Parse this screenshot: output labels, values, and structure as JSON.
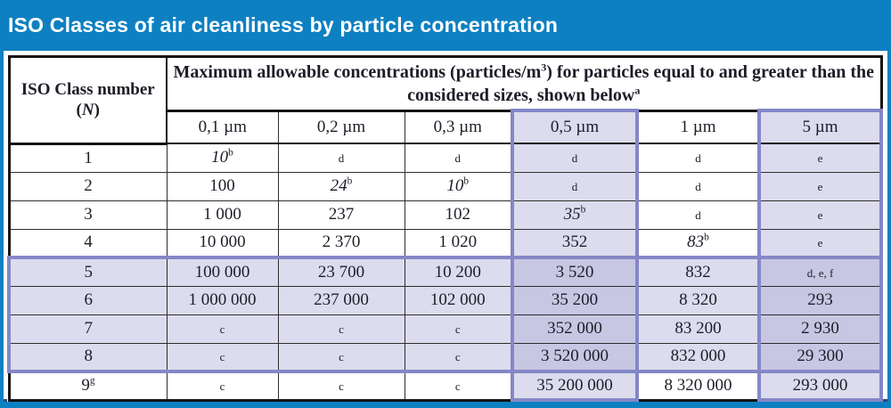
{
  "title": "ISO Classes of air cleanliness by particle concentration",
  "colors": {
    "accent_blue": "#0d80c2",
    "navy_line": "#2c4a7c",
    "lavender_light": "#dcdcee",
    "lavender_dark": "#c7c7e4",
    "purple_border": "#8587c7"
  },
  "table": {
    "corner": {
      "line1": "ISO Class number",
      "open": "(",
      "n_italic": "N",
      "close": ")"
    },
    "main_header": {
      "part1": "Maximum allowable concentrations (particles/m",
      "sup1": "3",
      "part2": ") for particles equal to and greater than the considered sizes, shown below",
      "sup2": "a"
    },
    "size_headers": [
      "0,1 µm",
      "0,2 µm",
      "0,3 µm",
      "0,5 µm",
      "1 µm",
      "5 µm"
    ],
    "highlight_columns": [
      3,
      5
    ],
    "highlight_rows": [
      4,
      5,
      6,
      7
    ],
    "rows": [
      {
        "label": {
          "t": "1"
        },
        "cells": [
          {
            "t": "10",
            "sup": "b",
            "italic": true
          },
          {
            "t": "d",
            "small": true
          },
          {
            "t": "d",
            "small": true
          },
          {
            "t": "d",
            "small": true
          },
          {
            "t": "d",
            "small": true
          },
          {
            "t": "e",
            "small": true
          }
        ]
      },
      {
        "label": {
          "t": "2"
        },
        "cells": [
          {
            "t": "100"
          },
          {
            "t": "24",
            "sup": "b",
            "italic": true
          },
          {
            "t": "10",
            "sup": "b",
            "italic": true
          },
          {
            "t": "d",
            "small": true
          },
          {
            "t": "d",
            "small": true
          },
          {
            "t": "e",
            "small": true
          }
        ]
      },
      {
        "label": {
          "t": "3"
        },
        "cells": [
          {
            "t": "1 000"
          },
          {
            "t": "237"
          },
          {
            "t": "102"
          },
          {
            "t": "35",
            "sup": "b",
            "italic": true
          },
          {
            "t": "d",
            "small": true
          },
          {
            "t": "e",
            "small": true
          }
        ]
      },
      {
        "label": {
          "t": "4"
        },
        "cells": [
          {
            "t": "10 000"
          },
          {
            "t": "2 370"
          },
          {
            "t": "1 020"
          },
          {
            "t": "352"
          },
          {
            "t": "83",
            "sup": "b",
            "italic": true
          },
          {
            "t": "e",
            "small": true
          }
        ]
      },
      {
        "label": {
          "t": "5"
        },
        "cells": [
          {
            "t": "100 000"
          },
          {
            "t": "23 700"
          },
          {
            "t": "10 200"
          },
          {
            "t": "3 520"
          },
          {
            "t": "832"
          },
          {
            "t": "d, e, f",
            "small": true
          }
        ]
      },
      {
        "label": {
          "t": "6"
        },
        "cells": [
          {
            "t": "1 000 000"
          },
          {
            "t": "237 000"
          },
          {
            "t": "102 000"
          },
          {
            "t": "35 200"
          },
          {
            "t": "8 320"
          },
          {
            "t": "293"
          }
        ]
      },
      {
        "label": {
          "t": "7"
        },
        "cells": [
          {
            "t": "c",
            "small": true
          },
          {
            "t": "c",
            "small": true
          },
          {
            "t": "c",
            "small": true
          },
          {
            "t": "352 000"
          },
          {
            "t": "83 200"
          },
          {
            "t": "2 930"
          }
        ]
      },
      {
        "label": {
          "t": "8"
        },
        "cells": [
          {
            "t": "c",
            "small": true
          },
          {
            "t": "c",
            "small": true
          },
          {
            "t": "c",
            "small": true
          },
          {
            "t": "3 520 000"
          },
          {
            "t": "832 000"
          },
          {
            "t": "29 300"
          }
        ]
      },
      {
        "label": {
          "t": "9",
          "sup": "g"
        },
        "cells": [
          {
            "t": "c",
            "small": true
          },
          {
            "t": "c",
            "small": true
          },
          {
            "t": "c",
            "small": true
          },
          {
            "t": "35 200 000"
          },
          {
            "t": "8 320 000"
          },
          {
            "t": "293 000"
          }
        ]
      }
    ]
  }
}
